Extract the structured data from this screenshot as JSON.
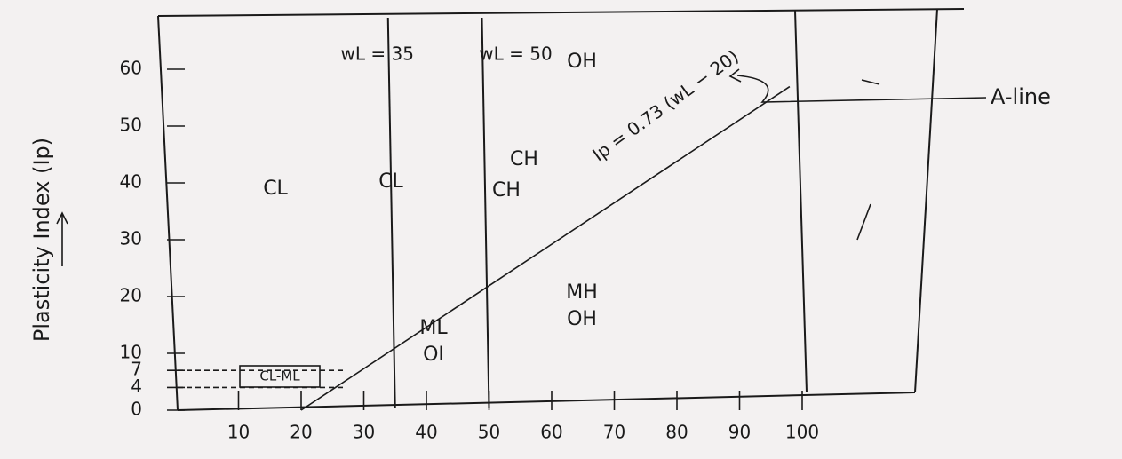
{
  "y_axis": {
    "label": "Plasticity Index (Ip)",
    "ticks": [
      0,
      4,
      7,
      10,
      20,
      30,
      40,
      50,
      60
    ]
  },
  "x_axis": {
    "ticks": [
      10,
      20,
      30,
      40,
      50,
      60,
      70,
      80,
      90,
      100
    ]
  },
  "a_line": {
    "equation": "Ip = 0.73 (wL − 20)",
    "label": "A-line",
    "slope": 0.73,
    "offset": 20
  },
  "boundaries": [
    {
      "label": "wL = 35",
      "value": 35
    },
    {
      "label": "wL = 50",
      "value": 50
    }
  ],
  "regions": [
    {
      "lines": [
        "CL"
      ]
    },
    {
      "lines": [
        "CL"
      ]
    },
    {
      "lines": [
        "CH"
      ]
    },
    {
      "lines": [
        "CH"
      ]
    },
    {
      "lines": [
        "ML",
        "OI"
      ]
    },
    {
      "lines": [
        "MH",
        "OH"
      ]
    },
    {
      "lines": [
        "CL-ML"
      ]
    },
    {
      "lines": [
        "OH"
      ]
    }
  ]
}
